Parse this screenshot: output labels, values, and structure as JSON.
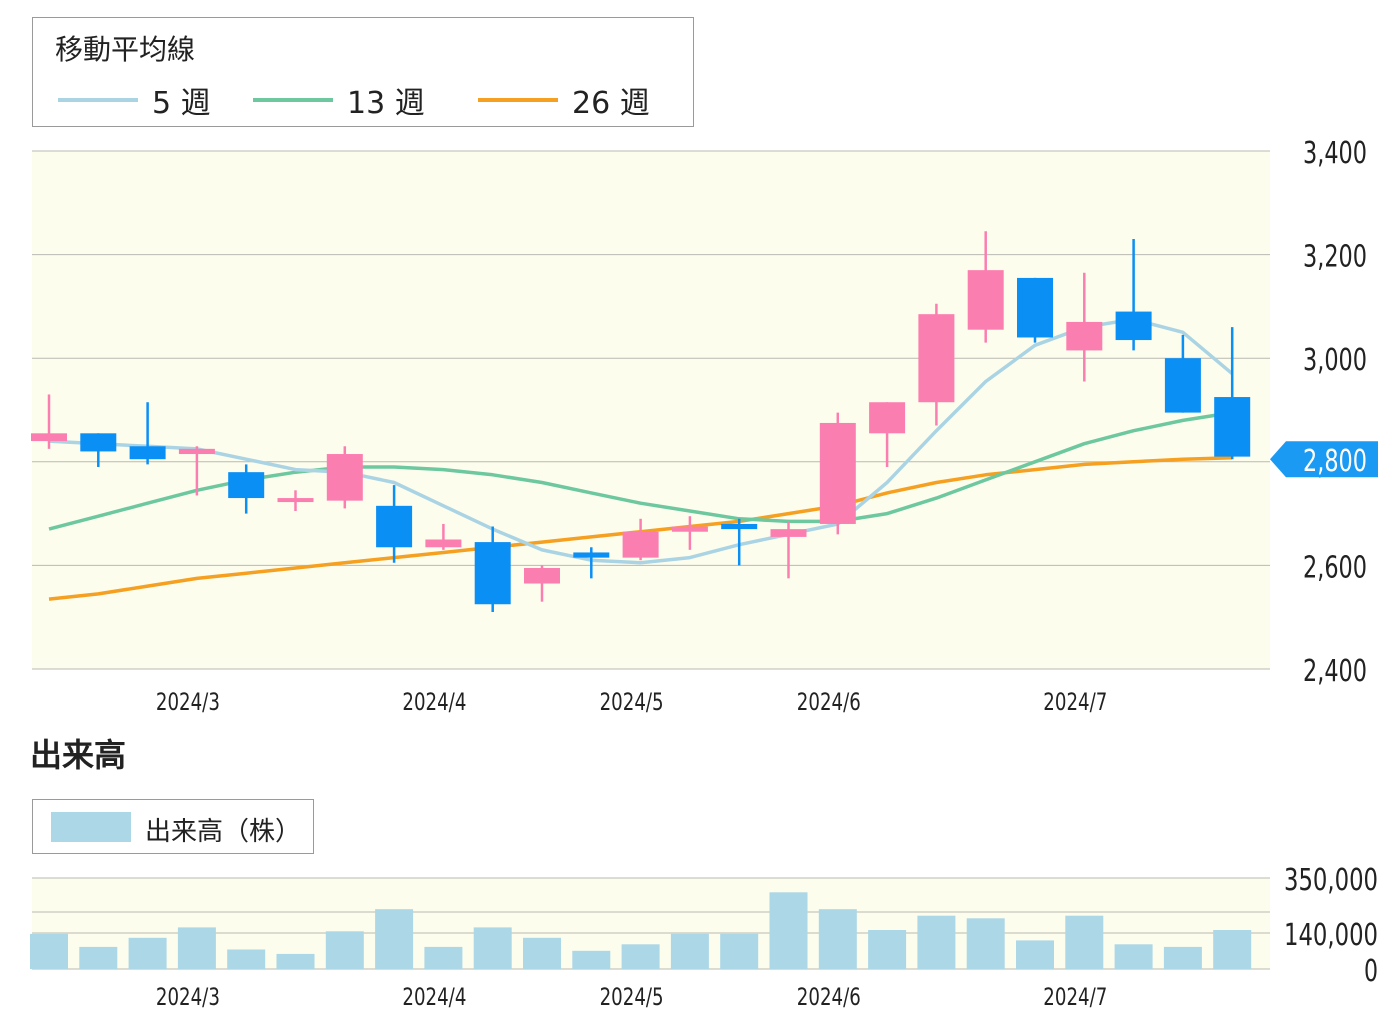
{
  "legend": {
    "title": "移動平均線",
    "items": [
      {
        "label": "5 週",
        "color": "#aad4e4"
      },
      {
        "label": "13 週",
        "color": "#6dc8a0"
      },
      {
        "label": "26 週",
        "color": "#f5a020"
      }
    ]
  },
  "volume_section_title": "出来高",
  "volume_legend_label": "出来高（株）",
  "colors": {
    "up": "#fb7eb0",
    "down": "#0a8ff5",
    "plot_bg": "#fdfdee",
    "volume_bar": "#acd7e6",
    "current_badge": "#1a9af2"
  },
  "chart_data": [
    {
      "type": "candlestick",
      "x_tick_labels": [
        "2024/3",
        "2024/4",
        "2024/5",
        "2024/6",
        "2024/7"
      ],
      "x_tick_positions_index": [
        3,
        8,
        12,
        16,
        21
      ],
      "y_ticks": [
        "3,400",
        "3,200",
        "3,000",
        "2,800",
        "2,600",
        "2,400"
      ],
      "ylim": [
        2400,
        3400
      ],
      "current_price_label": "2,800",
      "current_price": 2805,
      "grid": true,
      "ohlc": [
        {
          "o": 2840,
          "h": 2930,
          "l": 2825,
          "c": 2855
        },
        {
          "o": 2855,
          "h": 2855,
          "l": 2790,
          "c": 2820
        },
        {
          "o": 2830,
          "h": 2915,
          "l": 2795,
          "c": 2805
        },
        {
          "o": 2815,
          "h": 2830,
          "l": 2735,
          "c": 2825
        },
        {
          "o": 2780,
          "h": 2795,
          "l": 2700,
          "c": 2730
        },
        {
          "o": 2730,
          "h": 2745,
          "l": 2705,
          "c": 2730
        },
        {
          "o": 2725,
          "h": 2830,
          "l": 2710,
          "c": 2815
        },
        {
          "o": 2715,
          "h": 2755,
          "l": 2605,
          "c": 2635
        },
        {
          "o": 2635,
          "h": 2680,
          "l": 2630,
          "c": 2650
        },
        {
          "o": 2645,
          "h": 2675,
          "l": 2510,
          "c": 2525
        },
        {
          "o": 2565,
          "h": 2600,
          "l": 2530,
          "c": 2595
        },
        {
          "o": 2625,
          "h": 2635,
          "l": 2575,
          "c": 2615
        },
        {
          "o": 2615,
          "h": 2690,
          "l": 2610,
          "c": 2665
        },
        {
          "o": 2665,
          "h": 2695,
          "l": 2630,
          "c": 2675
        },
        {
          "o": 2680,
          "h": 2690,
          "l": 2600,
          "c": 2670
        },
        {
          "o": 2655,
          "h": 2685,
          "l": 2575,
          "c": 2670
        },
        {
          "o": 2680,
          "h": 2895,
          "l": 2660,
          "c": 2875
        },
        {
          "o": 2855,
          "h": 2915,
          "l": 2790,
          "c": 2915
        },
        {
          "o": 2915,
          "h": 3105,
          "l": 2870,
          "c": 3085
        },
        {
          "o": 3055,
          "h": 3245,
          "l": 3030,
          "c": 3170
        },
        {
          "o": 3155,
          "h": 3155,
          "l": 3030,
          "c": 3040
        },
        {
          "o": 3015,
          "h": 3165,
          "l": 2955,
          "c": 3070
        },
        {
          "o": 3090,
          "h": 3230,
          "l": 3015,
          "c": 3035
        },
        {
          "o": 3000,
          "h": 3045,
          "l": 2895,
          "c": 2895
        },
        {
          "o": 2925,
          "h": 3060,
          "l": 2805,
          "c": 2810
        }
      ],
      "ma5": [
        2840,
        2835,
        2830,
        2825,
        2805,
        2785,
        2780,
        2760,
        2715,
        2670,
        2630,
        2610,
        2605,
        2615,
        2640,
        2660,
        2680,
        2760,
        2860,
        2955,
        3025,
        3060,
        3075,
        3050,
        2970
      ],
      "ma13": [
        2670,
        2695,
        2720,
        2745,
        2765,
        2780,
        2790,
        2790,
        2785,
        2775,
        2760,
        2740,
        2720,
        2705,
        2690,
        2685,
        2685,
        2700,
        2730,
        2765,
        2800,
        2835,
        2860,
        2880,
        2895
      ],
      "ma26": [
        2535,
        2545,
        2560,
        2575,
        2585,
        2595,
        2605,
        2615,
        2625,
        2635,
        2645,
        2655,
        2665,
        2675,
        2685,
        2700,
        2715,
        2740,
        2760,
        2775,
        2785,
        2795,
        2800,
        2805,
        2808
      ]
    },
    {
      "type": "bar",
      "x_tick_labels": [
        "2024/3",
        "2024/4",
        "2024/5",
        "2024/6",
        "2024/7"
      ],
      "y_ticks": [
        "350,000",
        "140,000",
        "0"
      ],
      "ylim": [
        0,
        350000
      ],
      "values": [
        135000,
        85000,
        120000,
        160000,
        75000,
        58000,
        145000,
        230000,
        85000,
        160000,
        120000,
        70000,
        95000,
        135000,
        135000,
        295000,
        230000,
        150000,
        205000,
        195000,
        110000,
        205000,
        95000,
        85000,
        150000
      ]
    }
  ]
}
